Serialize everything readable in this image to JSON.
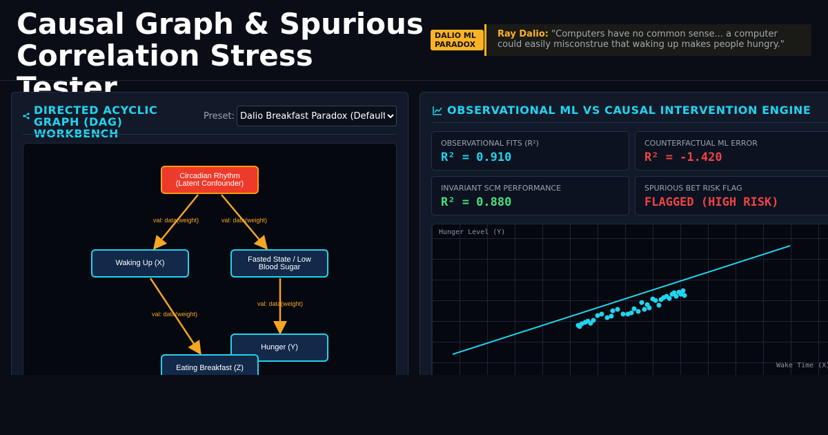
{
  "header": {
    "title": "Causal Graph & Spurious Correlation Stress Tester",
    "badge": "DALIO ML PARADOX",
    "quote_author": "Ray Dalio:",
    "quote_text": "\"Computers have no common sense... a computer could easily misconstrue that waking up makes people hungry.\""
  },
  "dag_panel": {
    "title": "DIRECTED ACYCLIC GRAPH (DAG) WORKBENCH",
    "preset_label": "Preset:",
    "preset_selected": "Dalio Breakfast Paradox (Default)",
    "nodes": [
      {
        "label": "Circadian Rhythm (Latent Confounder)"
      },
      {
        "label": "Waking Up (X)"
      },
      {
        "label": "Fasted State / Low Blood Sugar"
      },
      {
        "label": "Hunger (Y)"
      },
      {
        "label": "Eating Breakfast (Z)"
      }
    ],
    "edges": [
      {
        "label": "val: data(weight)"
      },
      {
        "label": "val: data(weight)"
      },
      {
        "label": "val: data(weight)"
      },
      {
        "label": "val: data(weight)"
      }
    ]
  },
  "engine_panel": {
    "title": "OBSERVATIONAL ML VS CAUSAL INTERVENTION ENGINE",
    "metrics": [
      {
        "label": "OBSERVATIONAL FITS (R²)",
        "value": "R² = 0.910"
      },
      {
        "label": "COUNTERFACTUAL ML ERROR",
        "value": "R² = -1.420"
      },
      {
        "label": "INVARIANT SCM PERFORMANCE",
        "value": "R² = 0.880"
      },
      {
        "label": "SPURIOUS BET RISK FLAG",
        "value": "FLAGGED (HIGH RISK)"
      }
    ]
  },
  "chart_data": {
    "type": "scatter",
    "y_label": "Hunger Level (Y)",
    "x_label": "Wake Time (X)",
    "color": "#22d3ee",
    "grid": true,
    "xlim": [
      0,
      14.35
    ],
    "ylim": [
      0,
      7.3
    ],
    "x": [
      5.3,
      5.35,
      5.425,
      5.55,
      5.65,
      5.75,
      5.85,
      6.0,
      6.15,
      6.35,
      6.5,
      6.55,
      6.725,
      6.925,
      7.1,
      7.225,
      7.325,
      7.475,
      7.6,
      7.7,
      7.8,
      7.875,
      8.0,
      8.1,
      8.225,
      8.3,
      8.4,
      8.5,
      8.6,
      8.7,
      8.775,
      8.85,
      8.95,
      9.025,
      9.1,
      9.15
    ],
    "y": [
      2.43,
      2.37,
      2.5,
      2.57,
      2.63,
      2.53,
      2.67,
      2.9,
      2.97,
      2.8,
      2.87,
      3.13,
      3.2,
      2.97,
      2.97,
      3.03,
      3.23,
      3.1,
      3.53,
      3.2,
      3.43,
      3.27,
      3.7,
      3.63,
      3.4,
      3.67,
      3.77,
      3.83,
      3.73,
      3.93,
      4.0,
      3.83,
      4.03,
      3.93,
      4.1,
      3.87
    ],
    "fit_line": {
      "x": [
        0.75,
        12.98
      ],
      "y": [
        1.03,
        6.27
      ]
    }
  }
}
